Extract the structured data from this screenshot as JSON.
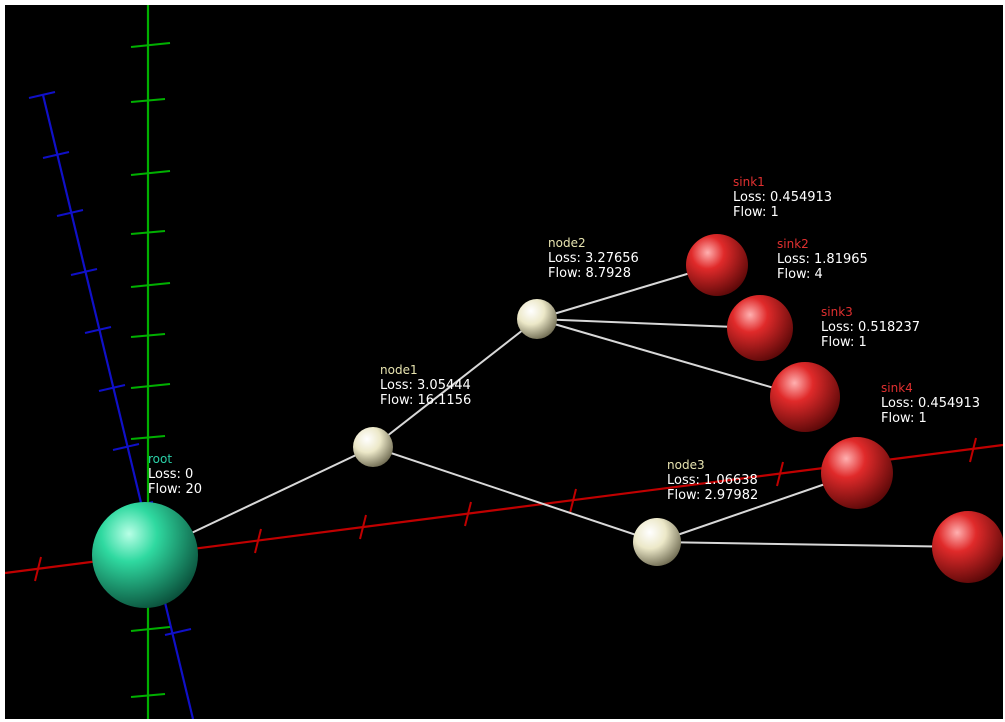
{
  "colors": {
    "background": "#000000",
    "axis_x": "#c00000",
    "axis_y": "#00b000",
    "axis_z": "#1010c8",
    "edge": "#d8d8d8",
    "root_sphere": "#2fd9a0",
    "node_sphere": "#ece8c8",
    "sink_sphere": "#e02a2a",
    "root_label": "#2ad0a8",
    "node_label": "#e8e4b0",
    "sink_label": "#e03030",
    "value_text": "#ffffff"
  },
  "nodes": [
    {
      "id": "root",
      "kind": "root",
      "name": "root",
      "loss": "Loss: 0",
      "flow": "Flow: 20"
    },
    {
      "id": "node1",
      "kind": "node",
      "name": "node1",
      "loss": "Loss: 3.05444",
      "flow": "Flow: 16.1156"
    },
    {
      "id": "node2",
      "kind": "node",
      "name": "node2",
      "loss": "Loss: 3.27656",
      "flow": "Flow: 8.7928"
    },
    {
      "id": "node3",
      "kind": "node",
      "name": "node3",
      "loss": "Loss: 1.06638",
      "flow": "Flow: 2.97982"
    },
    {
      "id": "sink1",
      "kind": "sink",
      "name": "sink1",
      "loss": "Loss: 0.454913",
      "flow": "Flow: 1"
    },
    {
      "id": "sink2",
      "kind": "sink",
      "name": "sink2",
      "loss": "Loss: 1.81965",
      "flow": "Flow: 4"
    },
    {
      "id": "sink3",
      "kind": "sink",
      "name": "sink3",
      "loss": "Loss: 0.518237",
      "flow": "Flow: 1"
    },
    {
      "id": "sink4",
      "kind": "sink",
      "name": "sink4",
      "loss": "Loss: 0.454913",
      "flow": "Flow: 1"
    },
    {
      "id": "sink5",
      "kind": "sink",
      "name": "",
      "loss": "",
      "flow": ""
    }
  ],
  "edges": [
    [
      "root",
      "node1"
    ],
    [
      "node1",
      "node2"
    ],
    [
      "node1",
      "node3"
    ],
    [
      "node2",
      "sink1"
    ],
    [
      "node2",
      "sink2"
    ],
    [
      "node2",
      "sink3"
    ],
    [
      "node3",
      "sink4"
    ],
    [
      "node3",
      "sink5"
    ]
  ]
}
